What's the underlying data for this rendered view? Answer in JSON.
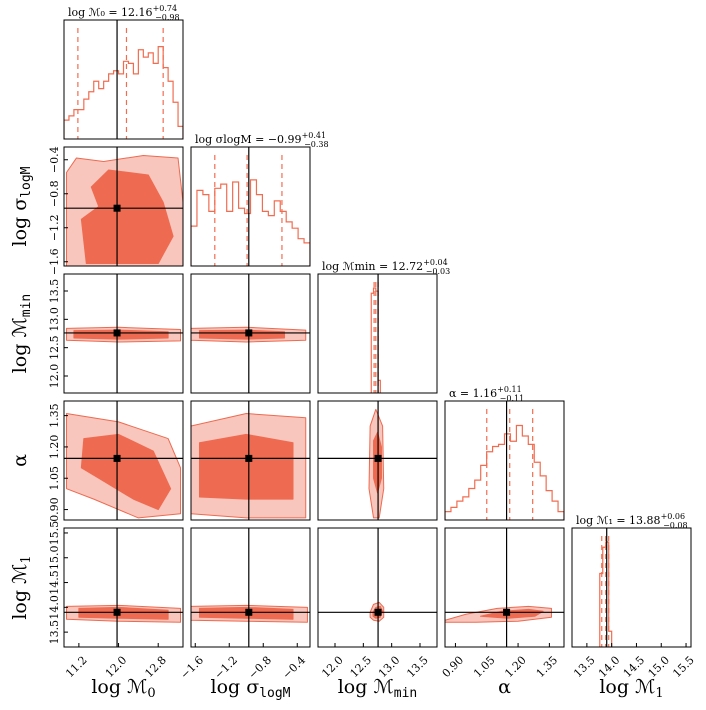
{
  "chart_data": {
    "type": "corner",
    "colors": {
      "hist_line": "#f26d50",
      "fill_inner": "#ee6a50",
      "fill_outer": "#f8c6bc",
      "contour_edge": "#ee6a50",
      "truth": "#000000"
    },
    "parameters": [
      {
        "key": "logM0",
        "label": "log ℳ₀",
        "label_main": "log ℳ",
        "label_sub": "0",
        "title": "log ℳ₀ = 12.16 +0.74 −0.98",
        "title_main": "log ℳ₀ = 12.16",
        "title_plus": "+0.74",
        "title_minus": "−0.98",
        "range": [
          10.9,
          13.3
        ],
        "ticks": [
          11.2,
          12.0,
          12.8
        ],
        "tick_labels": [
          "11.2",
          "12.0",
          "12.8"
        ],
        "truth": 11.97,
        "quantiles": [
          11.18,
          12.16,
          12.9
        ],
        "hist": [
          0.18,
          0.22,
          0.28,
          0.28,
          0.38,
          0.45,
          0.55,
          0.48,
          0.55,
          0.62,
          0.65,
          0.62,
          0.74,
          0.72,
          0.62,
          0.85,
          0.78,
          0.82,
          0.72,
          0.88,
          0.68,
          0.55,
          0.35,
          0.12
        ]
      },
      {
        "key": "sigma",
        "label": "log σ_logM",
        "label_main": "log σ",
        "label_sub": "logM",
        "title": "log σ_logM = −0.99 +0.41 −0.38",
        "title_main": "log σlogM = −0.99",
        "title_plus": "+0.41",
        "title_minus": "−0.38",
        "range": [
          -1.65,
          -0.25
        ],
        "ticks": [
          -1.6,
          -1.2,
          -0.8,
          -0.4
        ],
        "tick_labels": [
          "−1.6",
          "−1.2",
          "−0.8",
          "−0.4"
        ],
        "truth": -0.97,
        "quantiles": [
          -1.37,
          -0.99,
          -0.58
        ],
        "hist": [
          0.38,
          0.72,
          0.68,
          0.52,
          0.74,
          0.78,
          0.52,
          0.8,
          0.55,
          0.5,
          0.82,
          0.68,
          0.52,
          0.48,
          0.62,
          0.52,
          0.42,
          0.36,
          0.26,
          0.22
        ]
      },
      {
        "key": "logMmin",
        "label": "log ℳ_min",
        "label_main": "log ℳ",
        "label_sub": "min",
        "title": "log ℳ_min = 12.72 +0.04 −0.03",
        "title_main": "log ℳmin = 12.72",
        "title_plus": "+0.04",
        "title_minus": "−0.03",
        "range": [
          11.7,
          13.8
        ],
        "ticks": [
          12.0,
          12.5,
          13.0,
          13.5
        ],
        "tick_labels": [
          "12.0",
          "12.5",
          "13.0",
          "13.5"
        ],
        "truth": 12.76,
        "quantiles": [
          12.69,
          12.72,
          12.76
        ],
        "hist_bins": [
          12.64,
          12.68,
          12.72,
          12.76,
          12.8
        ],
        "hist": [
          0.95,
          1.0,
          0.97,
          0.12
        ]
      },
      {
        "key": "alpha",
        "label": "α",
        "label_main": "α",
        "label_sub": "",
        "title": "α = 1.16 +0.11 −0.11",
        "title_main": "α = 1.16",
        "title_plus": "+0.11",
        "title_minus": "−0.11",
        "range": [
          0.85,
          1.42
        ],
        "ticks": [
          0.9,
          1.05,
          1.2,
          1.35
        ],
        "tick_labels": [
          "0.90",
          "1.05",
          "1.20",
          "1.35"
        ],
        "truth": 1.145,
        "quantiles": [
          1.05,
          1.16,
          1.27
        ],
        "hist": [
          0.08,
          0.12,
          0.18,
          0.22,
          0.3,
          0.38,
          0.52,
          0.65,
          0.7,
          0.72,
          0.82,
          0.75,
          0.9,
          0.8,
          0.72,
          0.55,
          0.42,
          0.28,
          0.18,
          0.08
        ]
      },
      {
        "key": "logM1",
        "label": "log ℳ₁",
        "label_main": "log ℳ",
        "label_sub": "1",
        "title": "log ℳ₁ = 13.88 +0.06 −0.08",
        "title_main": "log ℳ₁ = 13.88",
        "title_plus": "+0.06",
        "title_minus": "−0.08",
        "range": [
          13.2,
          15.6
        ],
        "ticks": [
          13.5,
          14.0,
          14.5,
          15.0,
          15.5
        ],
        "tick_labels": [
          "13.5",
          "14.0",
          "14.5",
          "15.0",
          "15.5"
        ],
        "truth": 13.9,
        "quantiles": [
          13.8,
          13.88,
          13.94
        ],
        "hist_bins": [
          13.76,
          13.82,
          13.88,
          13.94,
          14.0
        ],
        "hist": [
          0.7,
          0.95,
          1.0,
          0.15
        ]
      }
    ],
    "pair_contours": {
      "note": "filled 2D posterior contours, outer and inner credible regions, in data units",
      "pairs": [
        {
          "x": "logM0",
          "y": "sigma",
          "outer": [
            [
              10.95,
              -1.65
            ],
            [
              10.95,
              -0.55
            ],
            [
              11.15,
              -0.38
            ],
            [
              11.7,
              -0.42
            ],
            [
              12.5,
              -0.35
            ],
            [
              13.2,
              -0.38
            ],
            [
              13.3,
              -0.9
            ],
            [
              13.3,
              -1.65
            ]
          ],
          "inner": [
            [
              11.35,
              -1.62
            ],
            [
              11.25,
              -1.1
            ],
            [
              11.6,
              -0.95
            ],
            [
              11.45,
              -0.72
            ],
            [
              11.8,
              -0.52
            ],
            [
              12.6,
              -0.58
            ],
            [
              12.9,
              -0.9
            ],
            [
              13.1,
              -1.3
            ],
            [
              12.8,
              -1.62
            ]
          ]
        },
        {
          "x": "logM0",
          "y": "logMmin",
          "outer": [
            [
              10.95,
              12.84
            ],
            [
              12.0,
              12.86
            ],
            [
              13.25,
              12.82
            ],
            [
              13.25,
              12.62
            ],
            [
              12.0,
              12.6
            ],
            [
              10.95,
              12.63
            ]
          ],
          "inner": [
            [
              11.1,
              12.8
            ],
            [
              12.0,
              12.81
            ],
            [
              13.0,
              12.78
            ],
            [
              13.0,
              12.67
            ],
            [
              12.0,
              12.65
            ],
            [
              11.1,
              12.67
            ]
          ]
        },
        {
          "x": "sigma",
          "y": "logMmin",
          "outer": [
            [
              -1.65,
              12.84
            ],
            [
              -1.0,
              12.86
            ],
            [
              -0.3,
              12.81
            ],
            [
              -0.3,
              12.63
            ],
            [
              -1.0,
              12.6
            ],
            [
              -1.65,
              12.63
            ]
          ],
          "inner": [
            [
              -1.55,
              12.8
            ],
            [
              -1.0,
              12.81
            ],
            [
              -0.55,
              12.78
            ],
            [
              -0.55,
              12.67
            ],
            [
              -1.0,
              12.65
            ],
            [
              -1.55,
              12.67
            ]
          ]
        },
        {
          "x": "logM0",
          "y": "alpha",
          "outer": [
            [
              10.95,
              1.36
            ],
            [
              12.0,
              1.32
            ],
            [
              13.0,
              1.24
            ],
            [
              13.25,
              1.1
            ],
            [
              13.25,
              0.88
            ],
            [
              12.4,
              0.86
            ],
            [
              11.5,
              0.95
            ],
            [
              10.95,
              1.0
            ]
          ],
          "inner": [
            [
              11.3,
              1.24
            ],
            [
              12.0,
              1.26
            ],
            [
              12.7,
              1.18
            ],
            [
              13.05,
              1.0
            ],
            [
              12.8,
              0.9
            ],
            [
              12.3,
              0.95
            ],
            [
              11.6,
              1.05
            ],
            [
              11.25,
              1.1
            ]
          ]
        },
        {
          "x": "sigma",
          "y": "alpha",
          "outer": [
            [
              -1.65,
              1.3
            ],
            [
              -1.0,
              1.36
            ],
            [
              -0.3,
              1.34
            ],
            [
              -0.3,
              0.86
            ],
            [
              -1.0,
              0.86
            ],
            [
              -1.65,
              0.88
            ]
          ],
          "inner": [
            [
              -1.55,
              1.22
            ],
            [
              -1.0,
              1.26
            ],
            [
              -0.45,
              1.22
            ],
            [
              -0.45,
              0.95
            ],
            [
              -1.0,
              0.95
            ],
            [
              -1.55,
              0.96
            ]
          ]
        },
        {
          "x": "logMmin",
          "y": "alpha",
          "outer": [
            [
              12.62,
              1.3
            ],
            [
              12.72,
              1.38
            ],
            [
              12.84,
              1.3
            ],
            [
              12.86,
              1.0
            ],
            [
              12.78,
              0.86
            ],
            [
              12.68,
              0.86
            ],
            [
              12.6,
              1.0
            ]
          ],
          "inner": [
            [
              12.68,
              1.23
            ],
            [
              12.75,
              1.27
            ],
            [
              12.82,
              1.2
            ],
            [
              12.82,
              1.05
            ],
            [
              12.75,
              0.98
            ],
            [
              12.68,
              1.05
            ]
          ]
        },
        {
          "x": "logM0",
          "y": "logM1",
          "outer": [
            [
              10.95,
              14.02
            ],
            [
              12.0,
              14.04
            ],
            [
              13.25,
              13.98
            ],
            [
              13.25,
              13.7
            ],
            [
              12.0,
              13.72
            ],
            [
              10.95,
              13.76
            ]
          ],
          "inner": [
            [
              11.2,
              13.98
            ],
            [
              12.0,
              14.0
            ],
            [
              13.0,
              13.94
            ],
            [
              13.0,
              13.76
            ],
            [
              12.0,
              13.78
            ],
            [
              11.2,
              13.8
            ]
          ]
        },
        {
          "x": "sigma",
          "y": "logM1",
          "outer": [
            [
              -1.65,
              14.02
            ],
            [
              -1.0,
              14.04
            ],
            [
              -0.28,
              14.0
            ],
            [
              -0.28,
              13.7
            ],
            [
              -1.0,
              13.72
            ],
            [
              -1.65,
              13.74
            ]
          ],
          "inner": [
            [
              -1.55,
              13.98
            ],
            [
              -1.0,
              14.0
            ],
            [
              -0.45,
              13.96
            ],
            [
              -0.45,
              13.76
            ],
            [
              -1.0,
              13.78
            ],
            [
              -1.55,
              13.8
            ]
          ]
        },
        {
          "x": "logMmin",
          "y": "logM1",
          "outer": [
            [
              12.62,
              13.9
            ],
            [
              12.68,
              14.06
            ],
            [
              12.78,
              14.1
            ],
            [
              12.86,
              14.0
            ],
            [
              12.86,
              13.8
            ],
            [
              12.78,
              13.72
            ],
            [
              12.68,
              13.74
            ],
            [
              12.62,
              13.8
            ]
          ],
          "inner": [
            [
              12.67,
              13.9
            ],
            [
              12.72,
              14.0
            ],
            [
              12.8,
              14.02
            ],
            [
              12.84,
              13.92
            ],
            [
              12.8,
              13.8
            ],
            [
              12.72,
              13.78
            ],
            [
              12.67,
              13.82
            ]
          ]
        },
        {
          "x": "alpha",
          "y": "logM1",
          "outer": [
            [
              0.85,
              13.74
            ],
            [
              0.95,
              13.86
            ],
            [
              1.1,
              13.98
            ],
            [
              1.25,
              14.02
            ],
            [
              1.36,
              13.98
            ],
            [
              1.36,
              13.8
            ],
            [
              1.2,
              13.72
            ],
            [
              1.0,
              13.7
            ],
            [
              0.85,
              13.7
            ]
          ],
          "inner": [
            [
              1.02,
              13.82
            ],
            [
              1.12,
              13.92
            ],
            [
              1.25,
              13.96
            ],
            [
              1.32,
              13.92
            ],
            [
              1.28,
              13.82
            ],
            [
              1.15,
              13.78
            ]
          ]
        }
      ]
    }
  }
}
